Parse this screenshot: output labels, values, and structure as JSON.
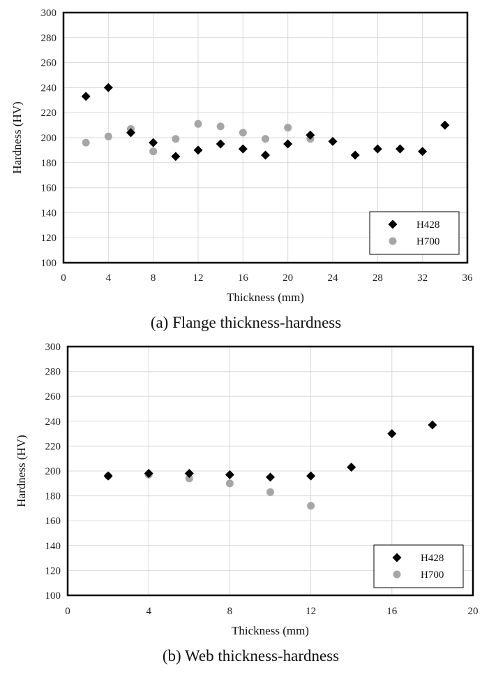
{
  "chart_data": [
    {
      "type": "scatter",
      "caption": "(a) Flange thickness-hardness",
      "xlabel": "Thickness (mm)",
      "ylabel": "Hardness (HV)",
      "xlim": [
        0,
        36
      ],
      "ylim": [
        100,
        300
      ],
      "xticks": [
        0,
        4,
        8,
        12,
        16,
        20,
        24,
        28,
        32,
        36
      ],
      "yticks": [
        100,
        120,
        140,
        160,
        180,
        200,
        220,
        240,
        260,
        280,
        300
      ],
      "grid": true,
      "legend_position": "bottom-right",
      "series": [
        {
          "name": "H428",
          "marker": "diamond",
          "color": "#000000",
          "points": [
            [
              2,
              233
            ],
            [
              4,
              240
            ],
            [
              6,
              204
            ],
            [
              8,
              196
            ],
            [
              10,
              185
            ],
            [
              12,
              190
            ],
            [
              14,
              195
            ],
            [
              16,
              191
            ],
            [
              18,
              186
            ],
            [
              20,
              195
            ],
            [
              22,
              202
            ],
            [
              24,
              197
            ],
            [
              26,
              186
            ],
            [
              28,
              191
            ],
            [
              30,
              191
            ],
            [
              32,
              189
            ],
            [
              34,
              210
            ]
          ]
        },
        {
          "name": "H700",
          "marker": "circle",
          "color": "#a6a6a6",
          "points": [
            [
              2,
              196
            ],
            [
              4,
              201
            ],
            [
              6,
              207
            ],
            [
              8,
              189
            ],
            [
              10,
              199
            ],
            [
              12,
              211
            ],
            [
              14,
              209
            ],
            [
              16,
              204
            ],
            [
              18,
              199
            ],
            [
              20,
              208
            ],
            [
              22,
              199
            ]
          ]
        }
      ]
    },
    {
      "type": "scatter",
      "caption": "(b) Web thickness-hardness",
      "xlabel": "Thickness (mm)",
      "ylabel": "Hardness (HV)",
      "xlim": [
        0,
        20
      ],
      "ylim": [
        100,
        300
      ],
      "xticks": [
        0,
        4,
        8,
        12,
        16,
        20
      ],
      "yticks": [
        100,
        120,
        140,
        160,
        180,
        200,
        220,
        240,
        260,
        280,
        300
      ],
      "grid": true,
      "legend_position": "bottom-right",
      "series": [
        {
          "name": "H428",
          "marker": "diamond",
          "color": "#000000",
          "points": [
            [
              2,
              196
            ],
            [
              4,
              198
            ],
            [
              6,
              198
            ],
            [
              8,
              197
            ],
            [
              10,
              195
            ],
            [
              12,
              196
            ],
            [
              14,
              203
            ],
            [
              16,
              230
            ],
            [
              18,
              237
            ]
          ]
        },
        {
          "name": "H700",
          "marker": "circle",
          "color": "#a6a6a6",
          "points": [
            [
              2,
              196
            ],
            [
              4,
              197
            ],
            [
              6,
              194
            ],
            [
              8,
              190
            ],
            [
              10,
              183
            ],
            [
              12,
              172
            ]
          ]
        }
      ]
    }
  ]
}
